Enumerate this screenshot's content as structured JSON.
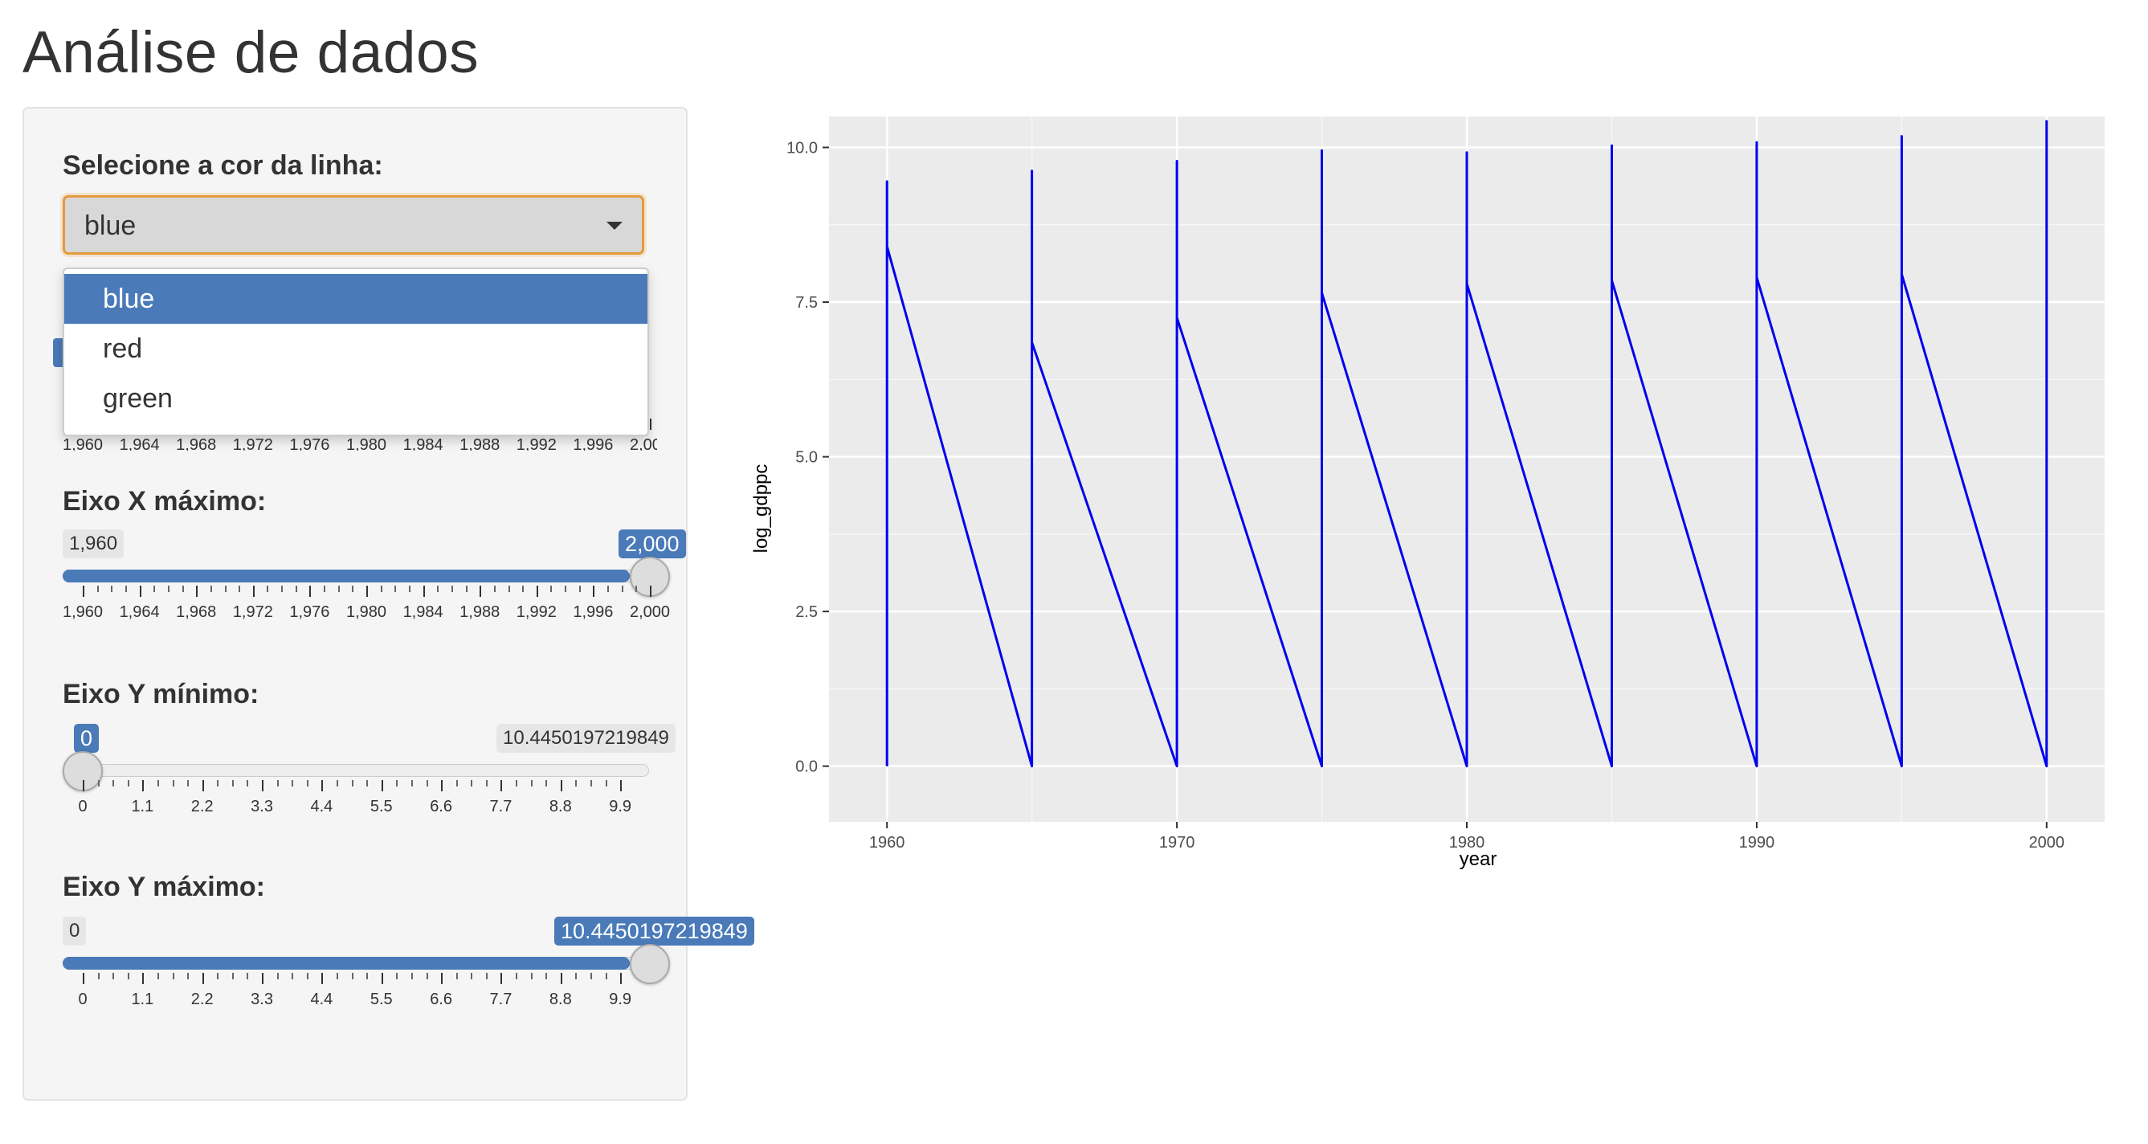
{
  "title": "Análise de dados",
  "sidebar": {
    "color_select": {
      "label": "Selecione a cor da linha:",
      "value": "blue",
      "options": [
        "blue",
        "red",
        "green"
      ],
      "highlighted": "blue"
    },
    "x_max": {
      "label": "Eixo X máximo:",
      "min_label": "1,960",
      "value_label": "2,000",
      "min": 1960,
      "max": 2000,
      "value": 2000,
      "ticks": [
        "1,960",
        "1,964",
        "1,968",
        "1,972",
        "1,976",
        "1,980",
        "1,984",
        "1,988",
        "1,992",
        "1,996",
        "2,000"
      ]
    },
    "y_min": {
      "label": "Eixo Y mínimo:",
      "value_label": "0",
      "max_label": "10.4450197219849",
      "min": 0,
      "max": 10.4450197219849,
      "value": 0,
      "ticks": [
        "0",
        "1.1",
        "2.2",
        "3.3",
        "4.4",
        "5.5",
        "6.6",
        "7.7",
        "8.8",
        "9.9"
      ]
    },
    "y_max": {
      "label": "Eixo Y máximo:",
      "min_label": "0",
      "value_label": "10.4450197219849",
      "min": 0,
      "max": 10.4450197219849,
      "value": 10.4450197219849,
      "ticks": [
        "0",
        "1.1",
        "2.2",
        "3.3",
        "4.4",
        "5.5",
        "6.6",
        "7.7",
        "8.8",
        "9.9"
      ]
    }
  },
  "chart_data": {
    "type": "line",
    "xlabel": "year",
    "ylabel": "log_gdppc",
    "xlim": [
      1958,
      2002
    ],
    "ylim": [
      -0.9,
      10.5
    ],
    "x_ticks": [
      1960,
      1970,
      1980,
      1990,
      2000
    ],
    "y_ticks": [
      0.0,
      2.5,
      5.0,
      7.5,
      10.0
    ],
    "y_tick_labels": [
      "0.0",
      "2.5",
      "5.0",
      "7.5",
      "10.0"
    ],
    "grid": true,
    "line_color": "#0000ee",
    "panel_color": "#ebebeb",
    "series": [
      {
        "x": [
          1960,
          1960,
          1960,
          1960,
          1965,
          1965,
          1965,
          1970,
          1970,
          1970,
          1975,
          1975,
          1975,
          1980,
          1980,
          1980,
          1985,
          1985,
          1985,
          1990,
          1990,
          1990,
          1995,
          1995,
          1995,
          2000,
          2000
        ],
        "y": [
          0.0,
          9.45,
          8.9,
          8.4,
          0.0,
          9.62,
          6.85,
          0.0,
          9.78,
          7.25,
          0.0,
          9.95,
          7.65,
          0.0,
          9.92,
          7.8,
          0.0,
          10.03,
          7.85,
          0.0,
          10.08,
          7.9,
          0.0,
          10.18,
          7.95,
          0.0,
          10.44
        ]
      }
    ]
  }
}
